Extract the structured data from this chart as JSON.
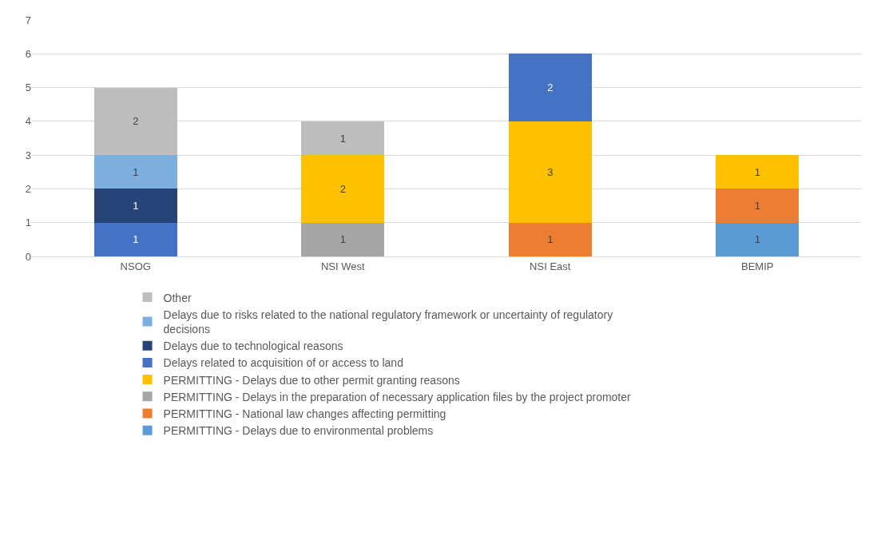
{
  "chart_data": {
    "type": "bar",
    "stacked": true,
    "categories": [
      "NSOG",
      "NSI West",
      "NSI East",
      "BEMIP"
    ],
    "series": [
      {
        "name": "PERMITTING - Delays due to environmental problems",
        "color": "#5b9bd5",
        "values": [
          null,
          null,
          null,
          1
        ]
      },
      {
        "name": "PERMITTING - National law changes affecting permitting",
        "color": "#ed7d31",
        "values": [
          null,
          null,
          1,
          1
        ]
      },
      {
        "name": "PERMITTING - Delays in the preparation of necessary application files by the project promoter",
        "color": "#a5a5a5",
        "values": [
          null,
          1,
          null,
          null
        ]
      },
      {
        "name": "PERMITTING - Delays due to other permit granting reasons",
        "color": "#ffc000",
        "values": [
          null,
          2,
          3,
          1
        ]
      },
      {
        "name": "Delays related to acquisition of or access to land",
        "color": "#4472c4",
        "values": [
          1,
          null,
          2,
          null
        ]
      },
      {
        "name": "Delays due to technological reasons",
        "color": "#264478",
        "values": [
          1,
          null,
          null,
          null
        ]
      },
      {
        "name": "Delays due to risks related to the national regulatory framework or uncertainty of regulatory decisions",
        "color": "#7cafdd",
        "values": [
          1,
          null,
          null,
          null
        ]
      },
      {
        "name": "Other",
        "color": "#bdbdbd",
        "values": [
          2,
          1,
          null,
          null
        ]
      }
    ],
    "ylim": [
      0,
      7
    ],
    "yticks": [
      0,
      1,
      2,
      3,
      4,
      5,
      6,
      7
    ],
    "grid": "y",
    "legend": "bottom",
    "data_labels": true
  }
}
